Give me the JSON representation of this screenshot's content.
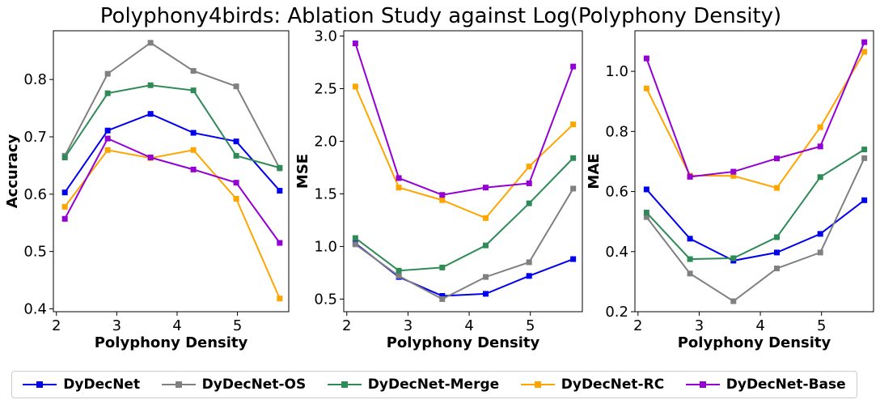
{
  "title": "Polyphony4birds: Ablation Study against Log(Polyphony Density)",
  "colors": {
    "DyDecNet": "#0000ee",
    "DyDecNet-OS": "#808080",
    "DyDecNet-Merge": "#2e8b57",
    "DyDecNet-RC": "#ffa500",
    "DyDecNet-Base": "#9400d3"
  },
  "legend": {
    "placement": "bottom",
    "entries": [
      "DyDecNet",
      "DyDecNet-OS",
      "DyDecNet-Merge",
      "DyDecNet-RC",
      "DyDecNet-Base"
    ]
  },
  "chart_data": [
    {
      "type": "line",
      "xlabel": "Polyphony Density",
      "ylabel": "Accuracy",
      "xlim": [
        1.95,
        5.85
      ],
      "ylim": [
        0.395,
        0.885
      ],
      "xticks": [
        2,
        3,
        4,
        5
      ],
      "xtick_labels": [
        "2",
        "3",
        "4",
        "5"
      ],
      "yticks": [
        0.4,
        0.5,
        0.6,
        0.7,
        0.8
      ],
      "ytick_labels": [
        "0.4",
        "0.5",
        "0.6",
        "0.7",
        "0.8"
      ],
      "grid": false,
      "x": [
        2.14,
        2.85,
        3.56,
        4.27,
        4.98,
        5.7
      ],
      "series": [
        {
          "name": "DyDecNet",
          "values": [
            0.603,
            0.711,
            0.74,
            0.707,
            0.692,
            0.606
          ]
        },
        {
          "name": "DyDecNet-OS",
          "values": [
            0.667,
            0.81,
            0.864,
            0.815,
            0.788,
            0.645
          ]
        },
        {
          "name": "DyDecNet-Merge",
          "values": [
            0.664,
            0.776,
            0.79,
            0.781,
            0.667,
            0.646
          ]
        },
        {
          "name": "DyDecNet-RC",
          "values": [
            0.578,
            0.677,
            0.663,
            0.677,
            0.592,
            0.418
          ]
        },
        {
          "name": "DyDecNet-Base",
          "values": [
            0.557,
            0.697,
            0.664,
            0.643,
            0.62,
            0.515
          ]
        }
      ]
    },
    {
      "type": "line",
      "xlabel": "Polyphony Density",
      "ylabel": "MSE",
      "xlim": [
        1.95,
        5.85
      ],
      "ylim": [
        0.38,
        3.05
      ],
      "xticks": [
        2,
        3,
        4,
        5
      ],
      "xtick_labels": [
        "2",
        "3",
        "4",
        "5"
      ],
      "yticks": [
        0.5,
        1.0,
        1.5,
        2.0,
        2.5,
        3.0
      ],
      "ytick_labels": [
        "0.5",
        "1.0",
        "1.5",
        "2.0",
        "2.5",
        "3.0"
      ],
      "grid": false,
      "x": [
        2.14,
        2.85,
        3.56,
        4.27,
        4.98,
        5.7
      ],
      "series": [
        {
          "name": "DyDecNet",
          "values": [
            1.03,
            0.71,
            0.53,
            0.55,
            0.72,
            0.88
          ]
        },
        {
          "name": "DyDecNet-OS",
          "values": [
            1.02,
            0.72,
            0.5,
            0.71,
            0.85,
            1.55
          ]
        },
        {
          "name": "DyDecNet-Merge",
          "values": [
            1.08,
            0.77,
            0.8,
            1.01,
            1.41,
            1.84
          ]
        },
        {
          "name": "DyDecNet-RC",
          "values": [
            2.52,
            1.56,
            1.44,
            1.27,
            1.76,
            2.16
          ]
        },
        {
          "name": "DyDecNet-Base",
          "values": [
            2.93,
            1.65,
            1.49,
            1.56,
            1.6,
            2.71
          ]
        }
      ]
    },
    {
      "type": "line",
      "xlabel": "Polyphony Density",
      "ylabel": "MAE",
      "xlim": [
        1.95,
        5.85
      ],
      "ylim": [
        0.2,
        1.135
      ],
      "xticks": [
        2,
        3,
        4,
        5
      ],
      "xtick_labels": [
        "2",
        "3",
        "4",
        "5"
      ],
      "yticks": [
        0.2,
        0.4,
        0.6,
        0.8,
        1.0
      ],
      "ytick_labels": [
        "0.2",
        "0.4",
        "0.6",
        "0.8",
        "1.0"
      ],
      "grid": false,
      "x": [
        2.14,
        2.85,
        3.56,
        4.27,
        4.98,
        5.7
      ],
      "series": [
        {
          "name": "DyDecNet",
          "values": [
            0.607,
            0.443,
            0.37,
            0.397,
            0.459,
            0.571
          ]
        },
        {
          "name": "DyDecNet-OS",
          "values": [
            0.515,
            0.327,
            0.235,
            0.344,
            0.397,
            0.711
          ]
        },
        {
          "name": "DyDecNet-Merge",
          "values": [
            0.53,
            0.375,
            0.378,
            0.448,
            0.648,
            0.74
          ]
        },
        {
          "name": "DyDecNet-RC",
          "values": [
            0.943,
            0.653,
            0.652,
            0.612,
            0.814,
            1.065
          ]
        },
        {
          "name": "DyDecNet-Base",
          "values": [
            1.043,
            0.649,
            0.666,
            0.71,
            0.75,
            1.097
          ]
        }
      ]
    }
  ]
}
